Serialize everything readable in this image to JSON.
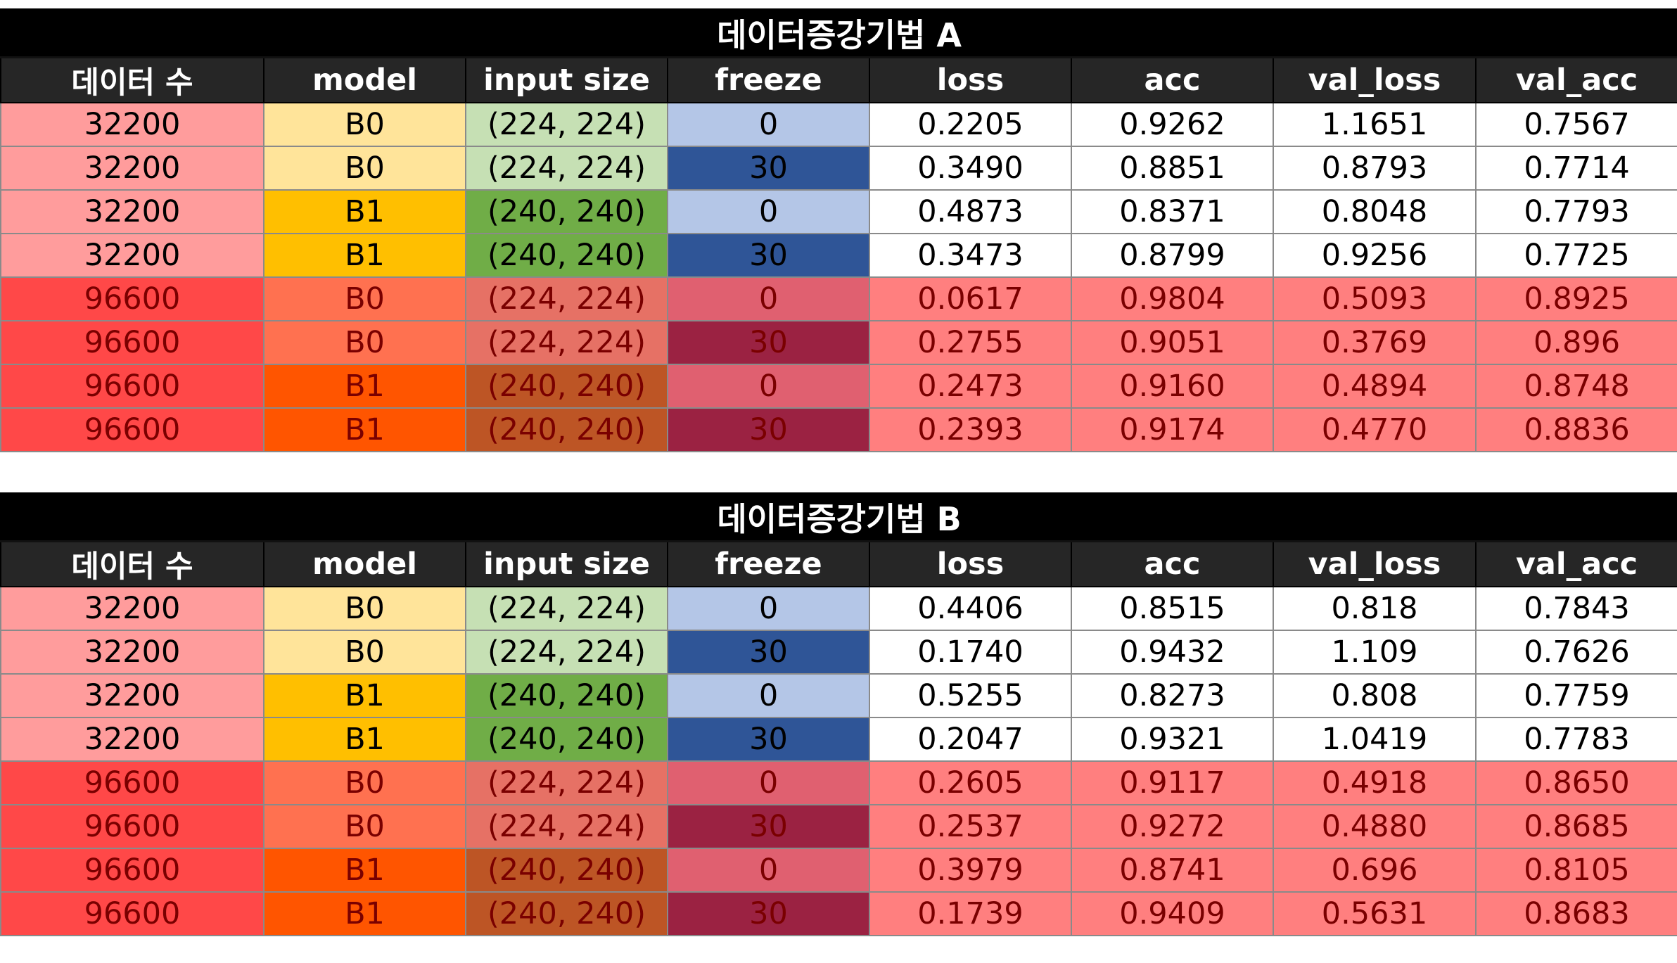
{
  "columns": [
    "데이터 수",
    "model",
    "input size",
    "freeze",
    "loss",
    "acc",
    "val_loss",
    "val_acc"
  ],
  "tables": [
    {
      "title": "데이터증강기법 A",
      "rows": [
        [
          "32200",
          "B0",
          "(224, 224)",
          "0",
          "0.2205",
          "0.9262",
          "1.1651",
          "0.7567"
        ],
        [
          "32200",
          "B0",
          "(224, 224)",
          "30",
          "0.3490",
          "0.8851",
          "0.8793",
          "0.7714"
        ],
        [
          "32200",
          "B1",
          "(240, 240)",
          "0",
          "0.4873",
          "0.8371",
          "0.8048",
          "0.7793"
        ],
        [
          "32200",
          "B1",
          "(240, 240)",
          "30",
          "0.3473",
          "0.8799",
          "0.9256",
          "0.7725"
        ],
        [
          "96600",
          "B0",
          "(224, 224)",
          "0",
          "0.0617",
          "0.9804",
          "0.5093",
          "0.8925"
        ],
        [
          "96600",
          "B0",
          "(224, 224)",
          "30",
          "0.2755",
          "0.9051",
          "0.3769",
          "0.896"
        ],
        [
          "96600",
          "B1",
          "(240, 240)",
          "0",
          "0.2473",
          "0.9160",
          "0.4894",
          "0.8748"
        ],
        [
          "96600",
          "B1",
          "(240, 240)",
          "30",
          "0.2393",
          "0.9174",
          "0.4770",
          "0.8836"
        ]
      ]
    },
    {
      "title": "데이터증강기법 B",
      "rows": [
        [
          "32200",
          "B0",
          "(224, 224)",
          "0",
          "0.4406",
          "0.8515",
          "0.818",
          "0.7843"
        ],
        [
          "32200",
          "B0",
          "(224, 224)",
          "30",
          "0.1740",
          "0.9432",
          "1.109",
          "0.7626"
        ],
        [
          "32200",
          "B1",
          "(240, 240)",
          "0",
          "0.5255",
          "0.8273",
          "0.808",
          "0.7759"
        ],
        [
          "32200",
          "B1",
          "(240, 240)",
          "30",
          "0.2047",
          "0.9321",
          "1.0419",
          "0.7783"
        ],
        [
          "96600",
          "B0",
          "(224, 224)",
          "0",
          "0.2605",
          "0.9117",
          "0.4918",
          "0.8650"
        ],
        [
          "96600",
          "B0",
          "(224, 224)",
          "30",
          "0.2537",
          "0.9272",
          "0.4880",
          "0.8685"
        ],
        [
          "96600",
          "B1",
          "(240, 240)",
          "0",
          "0.3979",
          "0.8741",
          "0.696",
          "0.8105"
        ],
        [
          "96600",
          "B1",
          "(240, 240)",
          "30",
          "0.1739",
          "0.9409",
          "0.5631",
          "0.8683"
        ]
      ]
    }
  ],
  "colors": {
    "title_bg": "#000000",
    "header_bg": "#262626",
    "count_32200": "#ff9c9c",
    "count_96600": "#ff4848",
    "model_b0_light": "#ffe49a",
    "model_b1_light": "#ffbf00",
    "input_224_light": "#c6e0b4",
    "input_240_light": "#70ad47",
    "freeze_0_light": "#b4c6e7",
    "freeze_30_light": "#2f5597",
    "metric_light": "#ffffff",
    "metric_dark": "#ff7f7f"
  }
}
